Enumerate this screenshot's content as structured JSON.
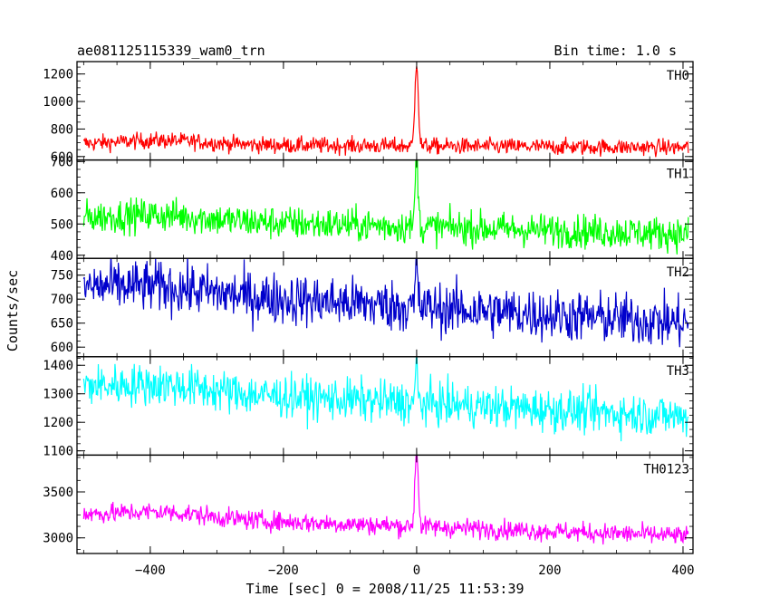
{
  "chart_data": {
    "type": "line",
    "title": "ae081125115339_wam0_trn",
    "bin_time_label": "Bin time: 1.0 s",
    "xlabel": "Time [sec] 0 = 2008/11/25 11:53:39",
    "ylabel": "Counts/sec",
    "xlim": [
      -510,
      415
    ],
    "x_ticks": [
      -400,
      -200,
      0,
      200,
      400
    ],
    "x_tick_labels": [
      "−400",
      "−200",
      "0",
      "200",
      "400"
    ],
    "grid": false,
    "panels": [
      {
        "name": "TH0",
        "color": "#ff0000",
        "ylim": [
          575,
          1290
        ],
        "y_ticks": [
          600,
          800,
          1000,
          1200
        ],
        "y_tick_labels": [
          "600",
          "800",
          "1000",
          "1200"
        ],
        "baseline_start": 690,
        "baseline_end": 665,
        "noise": 42,
        "early_bump": 30,
        "peak": 1290,
        "peak_width": 3.5
      },
      {
        "name": "TH1",
        "color": "#00ff00",
        "ylim": [
          390,
          705
        ],
        "y_ticks": [
          400,
          500,
          600,
          700
        ],
        "y_tick_labels": [
          "400",
          "500",
          "600",
          "700"
        ],
        "baseline_start": 520,
        "baseline_end": 468,
        "noise": 38,
        "early_bump": 15,
        "peak": 700,
        "peak_width": 3
      },
      {
        "name": "TH2",
        "color": "#0000cc",
        "ylim": [
          580,
          785
        ],
        "y_ticks": [
          600,
          650,
          700,
          750
        ],
        "y_tick_labels": [
          "600",
          "650",
          "700",
          "750"
        ],
        "baseline_start": 725,
        "baseline_end": 650,
        "noise": 38,
        "early_bump": 10,
        "peak": 760,
        "peak_width": 2
      },
      {
        "name": "TH3",
        "color": "#00ffff",
        "ylim": [
          1085,
          1430
        ],
        "y_ticks": [
          1100,
          1200,
          1300,
          1400
        ],
        "y_tick_labels": [
          "1100",
          "1200",
          "1300",
          "1400"
        ],
        "baseline_start": 1325,
        "baseline_end": 1220,
        "noise": 52,
        "early_bump": 20,
        "peak": 1380,
        "peak_width": 2
      },
      {
        "name": "TH0123",
        "color": "#ff00ff",
        "ylim": [
          2830,
          3900
        ],
        "y_ticks": [
          3000,
          3500
        ],
        "y_tick_labels": [
          "3000",
          "3500"
        ],
        "baseline_start": 3250,
        "baseline_end": 3020,
        "noise": 75,
        "early_bump": 60,
        "peak": 3880,
        "peak_width": 3.5
      }
    ]
  }
}
